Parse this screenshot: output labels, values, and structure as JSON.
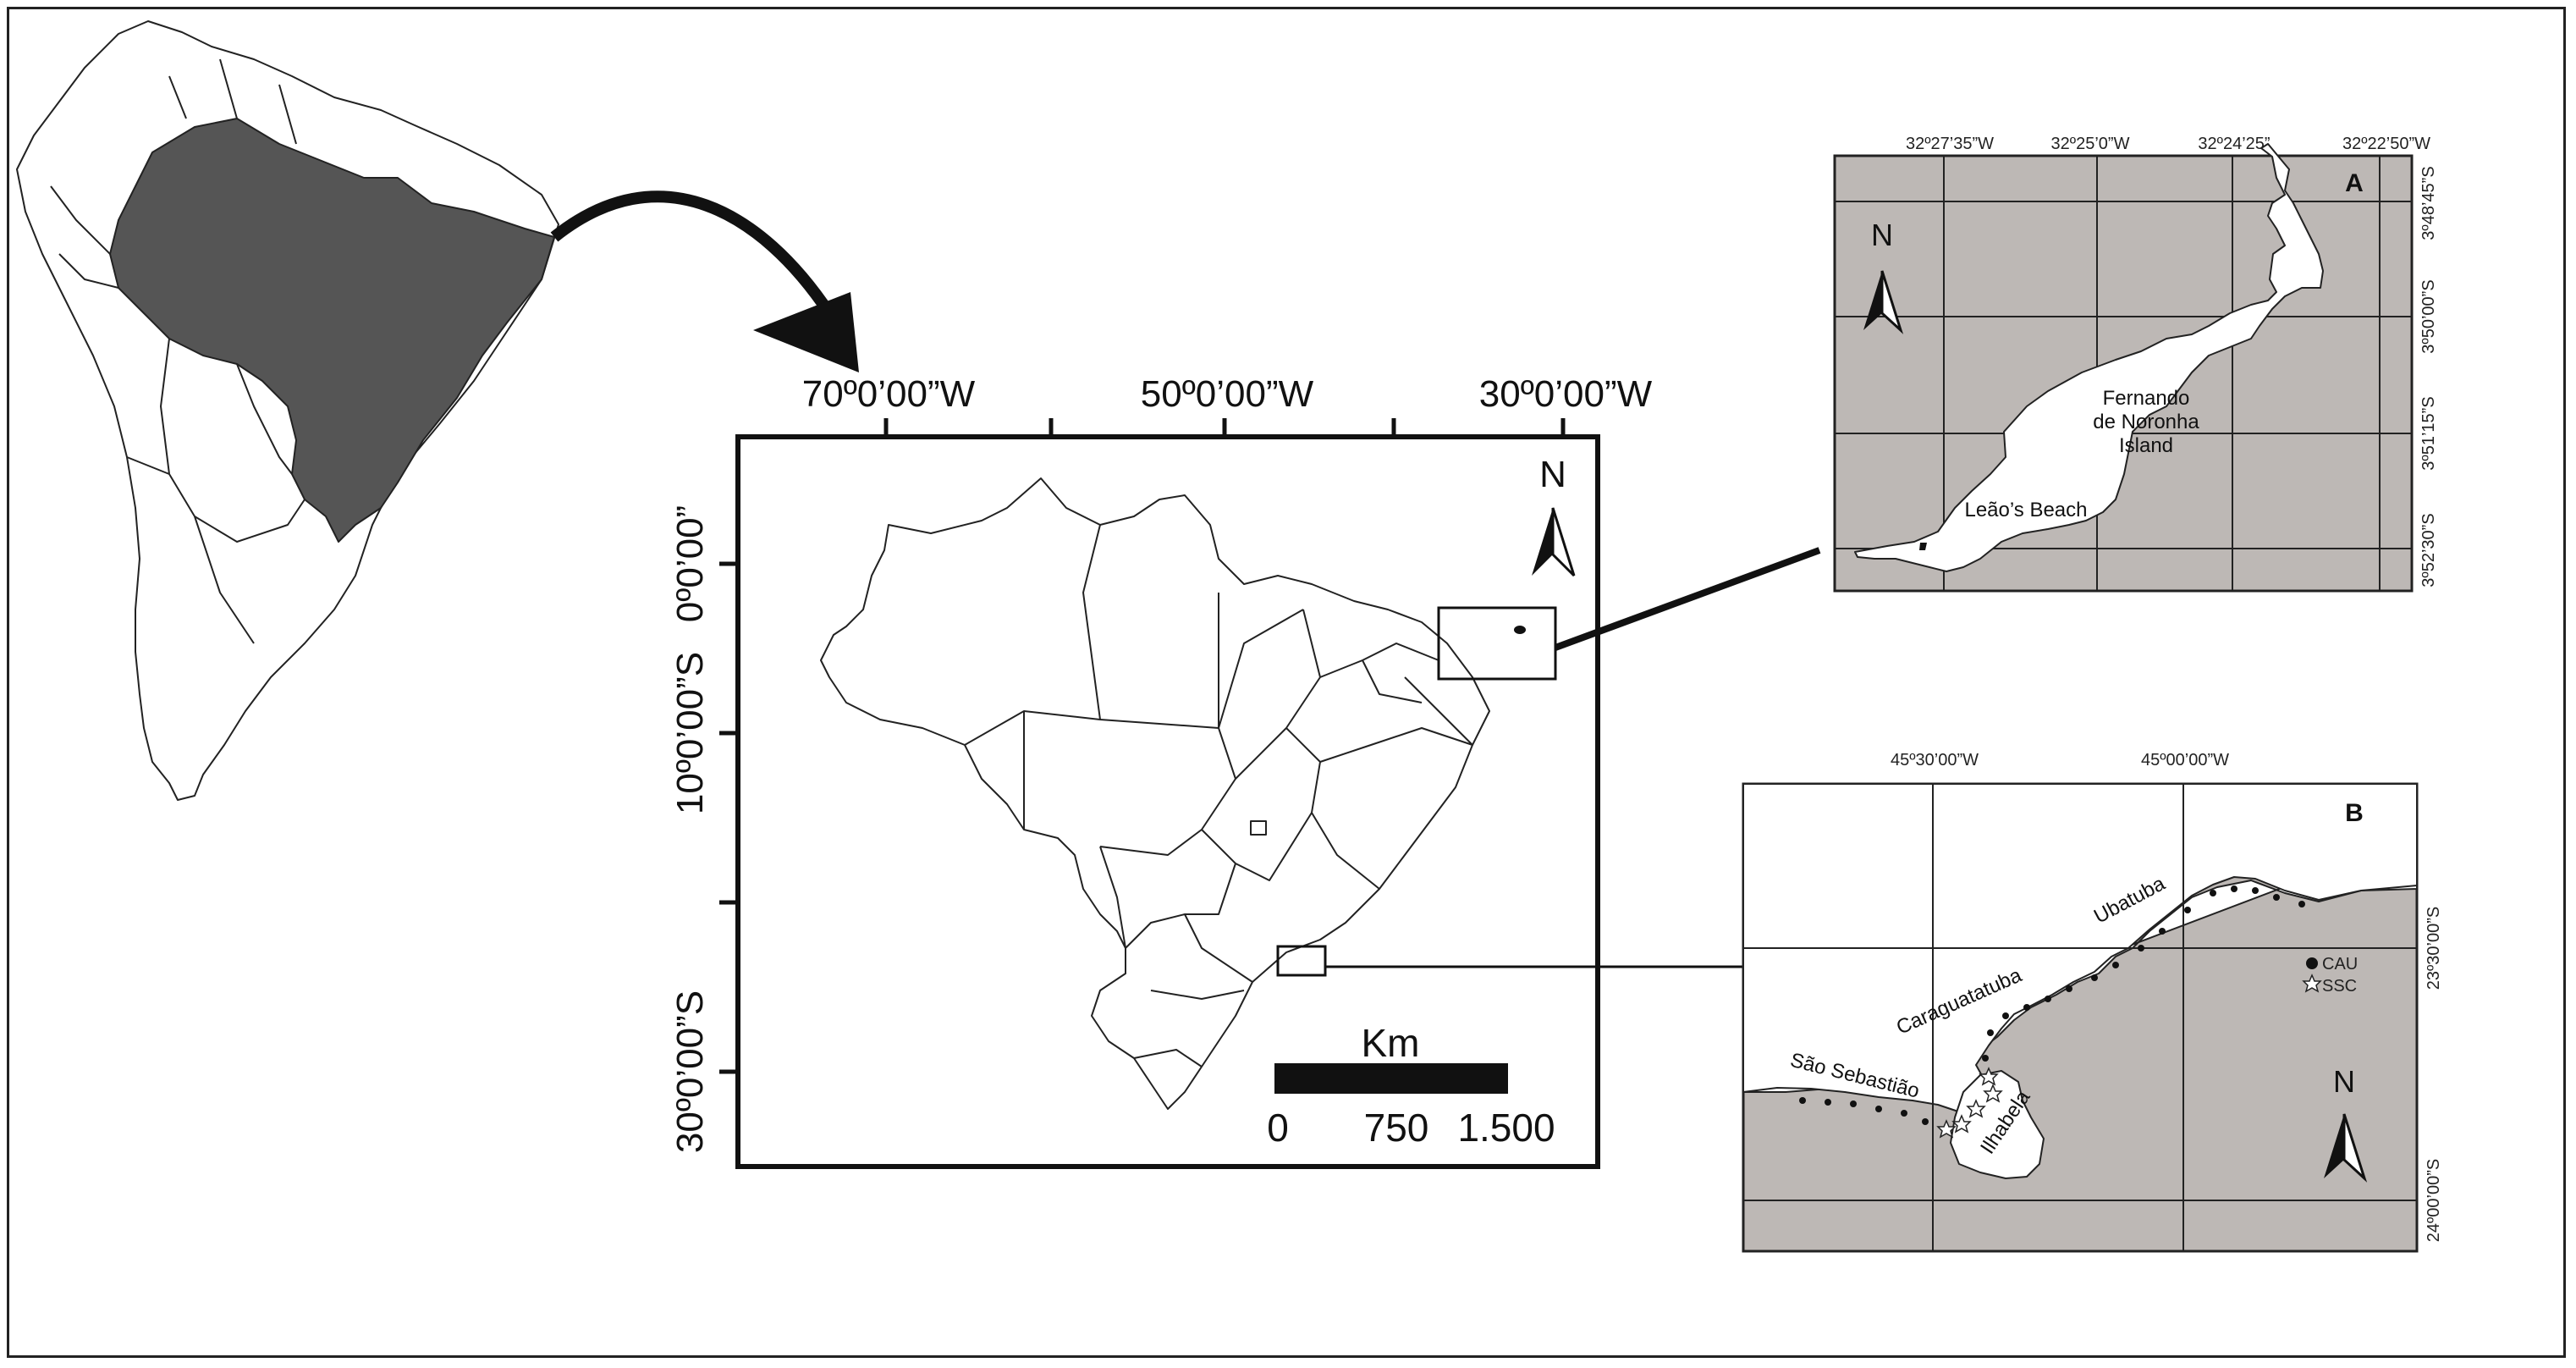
{
  "main_map": {
    "longitude_labels": [
      "70º0’00”W",
      "50º0’00”W",
      "30º0’00”W"
    ],
    "latitude_labels": [
      "0º0’00”",
      "10º0’00”S",
      "30º0’00”S"
    ],
    "north_label": "N",
    "scale_bar": {
      "unit": "Km",
      "ticks": [
        "0",
        "750",
        "1.500"
      ]
    }
  },
  "inset_a": {
    "panel_label": "A",
    "longitude_labels": [
      "32º27’35”W",
      "32º25’0”W",
      "32º24’25”",
      "32º22’50”W"
    ],
    "latitude_labels": [
      "3º48’45”S",
      "3º50’00”S",
      "3º51’15”S",
      "3º52’30”S"
    ],
    "north_label": "N",
    "island_label_lines": [
      "Fernando",
      "de Noronha",
      "Island"
    ],
    "beach_label": "Leão’s Beach"
  },
  "inset_b": {
    "panel_label": "B",
    "longitude_labels": [
      "45º30’00”W",
      "45º00’00”W"
    ],
    "latitude_labels": [
      "23º30’00”S",
      "24º00’00”S"
    ],
    "north_label": "N",
    "place_labels": [
      "Ubatuba",
      "Caraguatatuba",
      "São Sebastião",
      "Ilhabela"
    ],
    "legend": [
      {
        "symbol": "filled-circle",
        "label": "CAU"
      },
      {
        "symbol": "open-star",
        "label": "SSC"
      }
    ]
  },
  "colors": {
    "highlight_fill": "#555555",
    "sea_fill": "#bdb8b5",
    "land_fill": "#ffffff",
    "line": "#111111"
  }
}
